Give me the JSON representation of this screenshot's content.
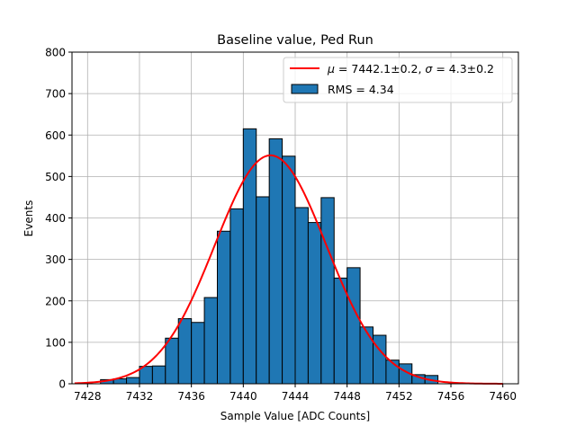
{
  "chart_data": {
    "type": "bar",
    "title": "Baseline value, Ped Run",
    "xlabel": "Sample Value [ADC Counts]",
    "ylabel": "Events",
    "xlim": [
      7426.8,
      7461.2
    ],
    "ylim": [
      0,
      800
    ],
    "x_ticks": [
      7428,
      7432,
      7436,
      7440,
      7444,
      7448,
      7452,
      7456,
      7460
    ],
    "y_ticks": [
      0,
      100,
      200,
      300,
      400,
      500,
      600,
      700,
      800
    ],
    "grid": true,
    "bin_width": 1,
    "histogram": {
      "name": "RMS = 4.34",
      "color": "#1f77b4",
      "edgecolor": "#000000",
      "bin_left_edges": [
        7429,
        7430,
        7431,
        7432,
        7433,
        7434,
        7435,
        7436,
        7437,
        7438,
        7439,
        7440,
        7441,
        7442,
        7443,
        7444,
        7445,
        7446,
        7447,
        7448,
        7449,
        7450,
        7451,
        7452,
        7453,
        7454
      ],
      "values": [
        10,
        12,
        15,
        42,
        43,
        110,
        157,
        148,
        208,
        368,
        422,
        615,
        451,
        591,
        549,
        425,
        389,
        449,
        255,
        280,
        137,
        117,
        57,
        48,
        22,
        20
      ]
    },
    "fit": {
      "name": "$\\mu = 7442.1 \\pm 0.2$, $\\sigma = 4.3 \\pm 0.2$",
      "type": "gaussian",
      "color": "#ff0000",
      "mu": 7442.1,
      "sigma": 4.3,
      "amplitude": 551,
      "x_range": [
        7427,
        7460
      ]
    },
    "legend": {
      "position": "top-right",
      "fit_label_mu": "μ",
      "fit_label_value1": " = 7442.1±0.2, ",
      "fit_label_sigma": "σ",
      "fit_label_value2": " = 4.3±0.2",
      "hist_label": "RMS = 4.34"
    }
  }
}
